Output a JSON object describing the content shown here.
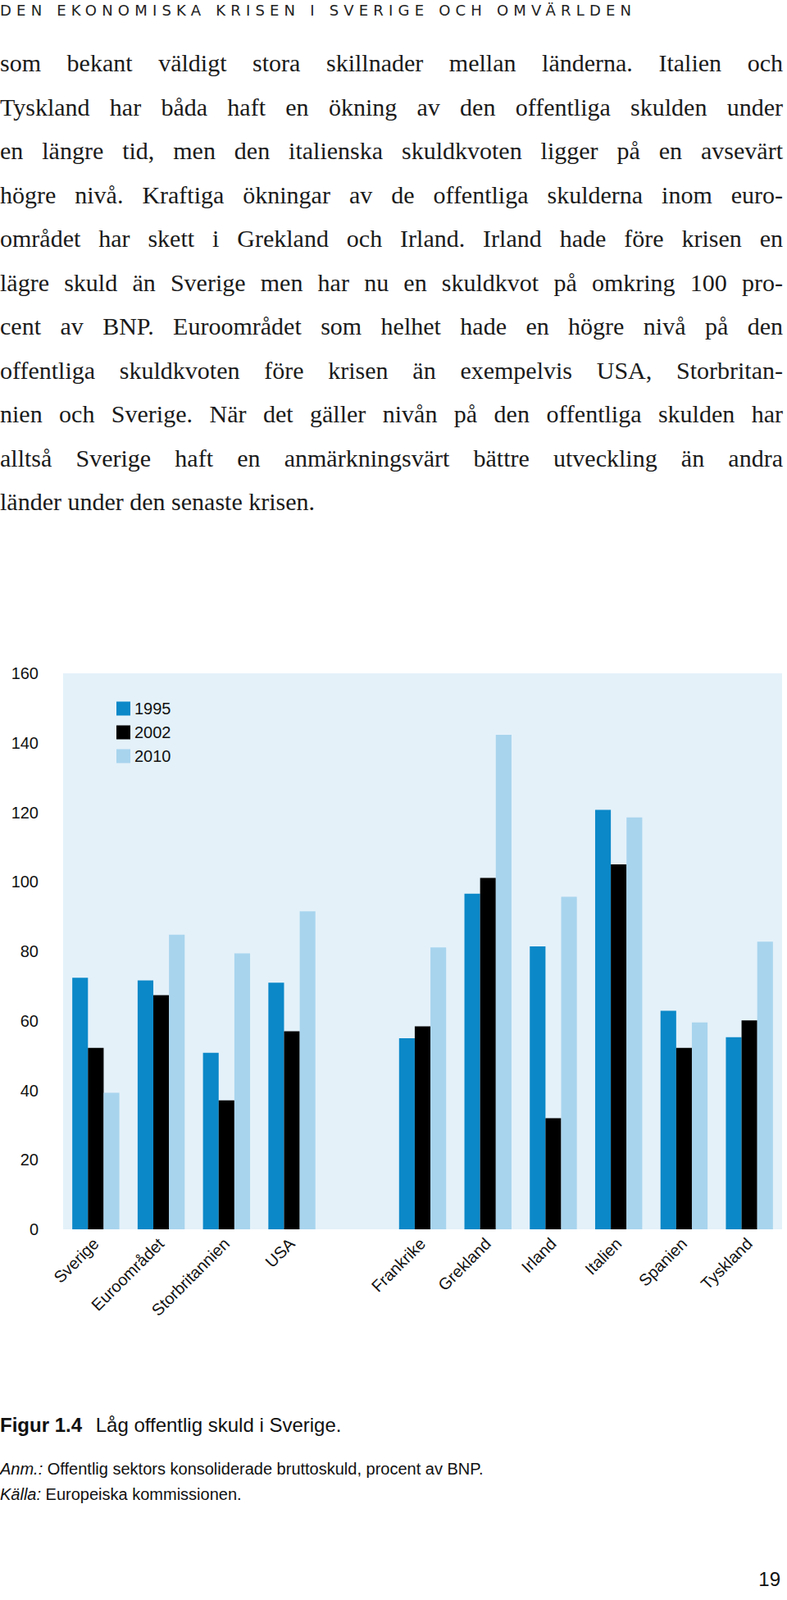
{
  "header": "DEN EKONOMISKA KRISEN I SVERIGE OCH OMVÄRLDEN",
  "body_lines": [
    "som bekant väldigt stora skillnader mellan länderna. Italien och",
    "Tyskland har båda haft en ökning av den offentliga skulden under",
    "en längre tid, men den italienska skuldkvoten ligger på en avsevärt",
    "högre nivå. Kraftiga ökningar av de offentliga skulderna inom euro-",
    "området har skett i Grekland och Irland. Irland hade före krisen en",
    "lägre skuld än Sverige men har nu en skuldkvot på omkring 100 pro-",
    "cent av BNP. Euroområdet som helhet hade en högre nivå på den",
    "offentliga skuldkvoten före krisen än exempelvis USA, Storbritan-",
    "nien och Sverige. När det gäller nivån på den offentliga skulden har",
    "alltså Sverige haft en anmärkningsvärt bättre utveckling än andra",
    "länder under den senaste krisen."
  ],
  "chart_data": {
    "type": "bar",
    "categories": [
      "Sverige",
      "Euroområdet",
      "Storbritannien",
      "USA",
      null,
      "Frankrike",
      "Grekland",
      "Irland",
      "Italien",
      "Spanien",
      "Tyskland"
    ],
    "series": [
      {
        "name": "1995",
        "color": "#0b88c8",
        "values": [
          72.4,
          71.6,
          50.8,
          71.0,
          null,
          55.0,
          96.6,
          81.4,
          120.7,
          62.9,
          55.3
        ]
      },
      {
        "name": "2002",
        "color": "#000000",
        "values": [
          52.2,
          67.4,
          37.1,
          57.0,
          null,
          58.4,
          101.1,
          32.0,
          105.0,
          52.2,
          60.1
        ]
      },
      {
        "name": "2010",
        "color": "#a8d4ee",
        "values": [
          39.3,
          84.8,
          79.4,
          91.5,
          null,
          81.1,
          142.3,
          95.7,
          118.5,
          59.5,
          82.8
        ]
      }
    ],
    "ylim": [
      0,
      160
    ],
    "yticks": [
      0,
      20,
      40,
      60,
      80,
      100,
      120,
      140,
      160
    ],
    "grid": false,
    "legend": "upper left"
  },
  "caption": {
    "label": "Figur 1.4",
    "text": "Låg offentlig skuld i Sverige."
  },
  "note": {
    "label": "Anm.:",
    "text": "Offentlig sektors konsoliderade bruttoskuld, procent av BNP."
  },
  "source": {
    "label": "Källa:",
    "text": "Europeiska kommissionen."
  },
  "page_number": "19"
}
